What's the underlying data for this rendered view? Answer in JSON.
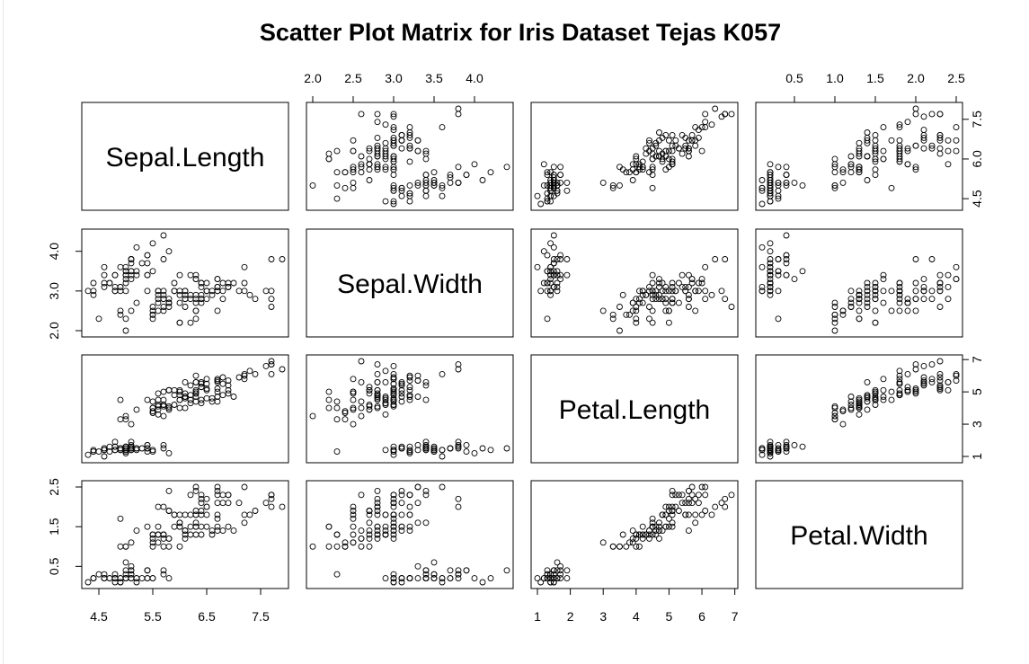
{
  "chart_data": {
    "type": "scatter",
    "title": "Scatter Plot Matrix for Iris Dataset Tejas K057",
    "variables": [
      "Sepal.Length",
      "Sepal.Width",
      "Petal.Length",
      "Petal.Width"
    ],
    "ranges": [
      [
        4.3,
        7.9
      ],
      [
        2.0,
        4.4
      ],
      [
        1.0,
        6.9
      ],
      [
        0.1,
        2.5
      ]
    ],
    "ticks": [
      [
        "4.5",
        "5.5",
        "6.5",
        "7.5"
      ],
      [
        "2.0",
        "2.5",
        "3.0",
        "3.5",
        "4.0"
      ],
      [
        "1",
        "2",
        "3",
        "4",
        "5",
        "6",
        "7"
      ],
      [
        "0.5",
        "1.0",
        "1.5",
        "2.0",
        "2.5"
      ]
    ],
    "ticks_left": [
      [
        "4.5",
        "6.0",
        "7.5"
      ],
      [
        "2.0",
        "3.0",
        "4.0"
      ],
      [
        "1",
        "3",
        "5",
        "7"
      ],
      [
        "0.5",
        "1.5",
        "2.5"
      ]
    ],
    "panel_order": "row variable on y, column variable on x",
    "observations": [
      [
        5.1,
        3.5,
        1.4,
        0.2
      ],
      [
        4.9,
        3.0,
        1.4,
        0.2
      ],
      [
        4.7,
        3.2,
        1.3,
        0.2
      ],
      [
        4.6,
        3.1,
        1.5,
        0.2
      ],
      [
        5.0,
        3.6,
        1.4,
        0.2
      ],
      [
        5.4,
        3.9,
        1.7,
        0.4
      ],
      [
        4.6,
        3.4,
        1.4,
        0.3
      ],
      [
        5.0,
        3.4,
        1.5,
        0.2
      ],
      [
        4.4,
        2.9,
        1.4,
        0.2
      ],
      [
        4.9,
        3.1,
        1.5,
        0.1
      ],
      [
        5.4,
        3.7,
        1.5,
        0.2
      ],
      [
        4.8,
        3.4,
        1.6,
        0.2
      ],
      [
        4.8,
        3.0,
        1.4,
        0.1
      ],
      [
        4.3,
        3.0,
        1.1,
        0.1
      ],
      [
        5.8,
        4.0,
        1.2,
        0.2
      ],
      [
        5.7,
        4.4,
        1.5,
        0.4
      ],
      [
        5.4,
        3.9,
        1.3,
        0.4
      ],
      [
        5.1,
        3.5,
        1.4,
        0.3
      ],
      [
        5.7,
        3.8,
        1.7,
        0.3
      ],
      [
        5.1,
        3.8,
        1.5,
        0.3
      ],
      [
        5.4,
        3.4,
        1.7,
        0.2
      ],
      [
        5.1,
        3.7,
        1.5,
        0.4
      ],
      [
        4.6,
        3.6,
        1.0,
        0.2
      ],
      [
        5.1,
        3.3,
        1.7,
        0.5
      ],
      [
        4.8,
        3.4,
        1.9,
        0.2
      ],
      [
        5.0,
        3.0,
        1.6,
        0.2
      ],
      [
        5.0,
        3.4,
        1.6,
        0.4
      ],
      [
        5.2,
        3.5,
        1.5,
        0.2
      ],
      [
        5.2,
        3.4,
        1.4,
        0.2
      ],
      [
        4.7,
        3.2,
        1.6,
        0.2
      ],
      [
        4.8,
        3.1,
        1.6,
        0.2
      ],
      [
        5.4,
        3.4,
        1.5,
        0.4
      ],
      [
        5.2,
        4.1,
        1.5,
        0.1
      ],
      [
        5.5,
        4.2,
        1.4,
        0.2
      ],
      [
        4.9,
        3.1,
        1.5,
        0.2
      ],
      [
        5.0,
        3.2,
        1.2,
        0.2
      ],
      [
        5.5,
        3.5,
        1.3,
        0.2
      ],
      [
        4.9,
        3.6,
        1.4,
        0.1
      ],
      [
        4.4,
        3.0,
        1.3,
        0.2
      ],
      [
        5.1,
        3.4,
        1.5,
        0.2
      ],
      [
        5.0,
        3.5,
        1.3,
        0.3
      ],
      [
        4.5,
        2.3,
        1.3,
        0.3
      ],
      [
        4.4,
        3.2,
        1.3,
        0.2
      ],
      [
        5.0,
        3.5,
        1.6,
        0.6
      ],
      [
        5.1,
        3.8,
        1.9,
        0.4
      ],
      [
        4.8,
        3.0,
        1.4,
        0.3
      ],
      [
        5.1,
        3.8,
        1.6,
        0.2
      ],
      [
        4.6,
        3.2,
        1.4,
        0.2
      ],
      [
        5.3,
        3.7,
        1.5,
        0.2
      ],
      [
        5.0,
        3.3,
        1.4,
        0.2
      ],
      [
        7.0,
        3.2,
        4.7,
        1.4
      ],
      [
        6.4,
        3.2,
        4.5,
        1.5
      ],
      [
        6.9,
        3.1,
        4.9,
        1.5
      ],
      [
        5.5,
        2.3,
        4.0,
        1.3
      ],
      [
        6.5,
        2.8,
        4.6,
        1.5
      ],
      [
        5.7,
        2.8,
        4.5,
        1.3
      ],
      [
        6.3,
        3.3,
        4.7,
        1.6
      ],
      [
        4.9,
        2.4,
        3.3,
        1.0
      ],
      [
        6.6,
        2.9,
        4.6,
        1.3
      ],
      [
        5.2,
        2.7,
        3.9,
        1.4
      ],
      [
        5.0,
        2.0,
        3.5,
        1.0
      ],
      [
        5.9,
        3.0,
        4.2,
        1.5
      ],
      [
        6.0,
        2.2,
        4.0,
        1.0
      ],
      [
        6.1,
        2.9,
        4.7,
        1.4
      ],
      [
        5.6,
        2.9,
        3.6,
        1.3
      ],
      [
        6.7,
        3.1,
        4.4,
        1.4
      ],
      [
        5.6,
        3.0,
        4.5,
        1.5
      ],
      [
        5.8,
        2.7,
        4.1,
        1.0
      ],
      [
        6.2,
        2.2,
        4.5,
        1.5
      ],
      [
        5.6,
        2.5,
        3.9,
        1.1
      ],
      [
        5.9,
        3.2,
        4.8,
        1.8
      ],
      [
        6.1,
        2.8,
        4.0,
        1.3
      ],
      [
        6.3,
        2.5,
        4.9,
        1.5
      ],
      [
        6.1,
        2.8,
        4.7,
        1.2
      ],
      [
        6.4,
        2.9,
        4.3,
        1.3
      ],
      [
        6.6,
        3.0,
        4.4,
        1.4
      ],
      [
        6.8,
        2.8,
        4.8,
        1.4
      ],
      [
        6.7,
        3.0,
        5.0,
        1.7
      ],
      [
        6.0,
        2.9,
        4.5,
        1.5
      ],
      [
        5.7,
        2.6,
        3.5,
        1.0
      ],
      [
        5.5,
        2.4,
        3.8,
        1.1
      ],
      [
        5.5,
        2.4,
        3.7,
        1.0
      ],
      [
        5.8,
        2.7,
        3.9,
        1.2
      ],
      [
        6.0,
        2.7,
        5.1,
        1.6
      ],
      [
        5.4,
        3.0,
        4.5,
        1.5
      ],
      [
        6.0,
        3.4,
        4.5,
        1.6
      ],
      [
        6.7,
        3.1,
        4.7,
        1.5
      ],
      [
        6.3,
        2.3,
        4.4,
        1.3
      ],
      [
        5.6,
        3.0,
        4.1,
        1.3
      ],
      [
        5.5,
        2.5,
        4.0,
        1.3
      ],
      [
        5.5,
        2.6,
        4.4,
        1.2
      ],
      [
        6.1,
        3.0,
        4.6,
        1.4
      ],
      [
        5.8,
        2.6,
        4.0,
        1.2
      ],
      [
        5.0,
        2.3,
        3.3,
        1.0
      ],
      [
        5.6,
        2.7,
        4.2,
        1.3
      ],
      [
        5.7,
        3.0,
        4.2,
        1.2
      ],
      [
        5.7,
        2.9,
        4.2,
        1.3
      ],
      [
        6.2,
        2.9,
        4.3,
        1.3
      ],
      [
        5.1,
        2.5,
        3.0,
        1.1
      ],
      [
        5.7,
        2.8,
        4.1,
        1.3
      ],
      [
        6.3,
        3.3,
        6.0,
        2.5
      ],
      [
        5.8,
        2.7,
        5.1,
        1.9
      ],
      [
        7.1,
        3.0,
        5.9,
        2.1
      ],
      [
        6.3,
        2.9,
        5.6,
        1.8
      ],
      [
        6.5,
        3.0,
        5.8,
        2.2
      ],
      [
        7.6,
        3.0,
        6.6,
        2.1
      ],
      [
        4.9,
        2.5,
        4.5,
        1.7
      ],
      [
        7.3,
        2.9,
        6.3,
        1.8
      ],
      [
        6.7,
        2.5,
        5.8,
        1.8
      ],
      [
        7.2,
        3.6,
        6.1,
        2.5
      ],
      [
        6.5,
        3.2,
        5.1,
        2.0
      ],
      [
        6.4,
        2.7,
        5.3,
        1.9
      ],
      [
        6.8,
        3.0,
        5.5,
        2.1
      ],
      [
        5.7,
        2.5,
        5.0,
        2.0
      ],
      [
        5.8,
        2.8,
        5.1,
        2.4
      ],
      [
        6.4,
        3.2,
        5.3,
        2.3
      ],
      [
        6.5,
        3.0,
        5.5,
        1.8
      ],
      [
        7.7,
        3.8,
        6.7,
        2.2
      ],
      [
        7.7,
        2.6,
        6.9,
        2.3
      ],
      [
        6.0,
        2.2,
        5.0,
        1.5
      ],
      [
        6.9,
        3.2,
        5.7,
        2.3
      ],
      [
        5.6,
        2.8,
        4.9,
        2.0
      ],
      [
        7.7,
        2.8,
        6.7,
        2.0
      ],
      [
        6.3,
        2.7,
        4.9,
        1.8
      ],
      [
        6.7,
        3.3,
        5.7,
        2.1
      ],
      [
        7.2,
        3.2,
        6.0,
        1.8
      ],
      [
        6.2,
        2.8,
        4.8,
        1.8
      ],
      [
        6.1,
        3.0,
        4.9,
        1.8
      ],
      [
        6.4,
        2.8,
        5.6,
        2.1
      ],
      [
        7.2,
        3.0,
        5.8,
        1.6
      ],
      [
        7.4,
        2.8,
        6.1,
        1.9
      ],
      [
        7.9,
        3.8,
        6.4,
        2.0
      ],
      [
        6.4,
        2.8,
        5.6,
        2.2
      ],
      [
        6.3,
        2.8,
        5.1,
        1.5
      ],
      [
        6.1,
        2.6,
        5.6,
        1.4
      ],
      [
        7.7,
        3.0,
        6.1,
        2.3
      ],
      [
        6.3,
        3.4,
        5.6,
        2.4
      ],
      [
        6.4,
        3.1,
        5.5,
        1.8
      ],
      [
        6.0,
        3.0,
        4.8,
        1.8
      ],
      [
        6.9,
        3.1,
        5.4,
        2.1
      ],
      [
        6.7,
        3.1,
        5.6,
        2.4
      ],
      [
        6.9,
        3.1,
        5.1,
        2.3
      ],
      [
        5.8,
        2.7,
        5.1,
        1.9
      ],
      [
        6.8,
        3.2,
        5.9,
        2.3
      ],
      [
        6.7,
        3.3,
        5.7,
        2.5
      ],
      [
        6.7,
        3.0,
        5.2,
        2.3
      ],
      [
        6.3,
        2.5,
        5.0,
        1.9
      ],
      [
        6.5,
        3.0,
        5.2,
        2.0
      ],
      [
        6.2,
        3.4,
        5.4,
        2.3
      ],
      [
        5.9,
        3.0,
        5.1,
        1.8
      ]
    ]
  }
}
